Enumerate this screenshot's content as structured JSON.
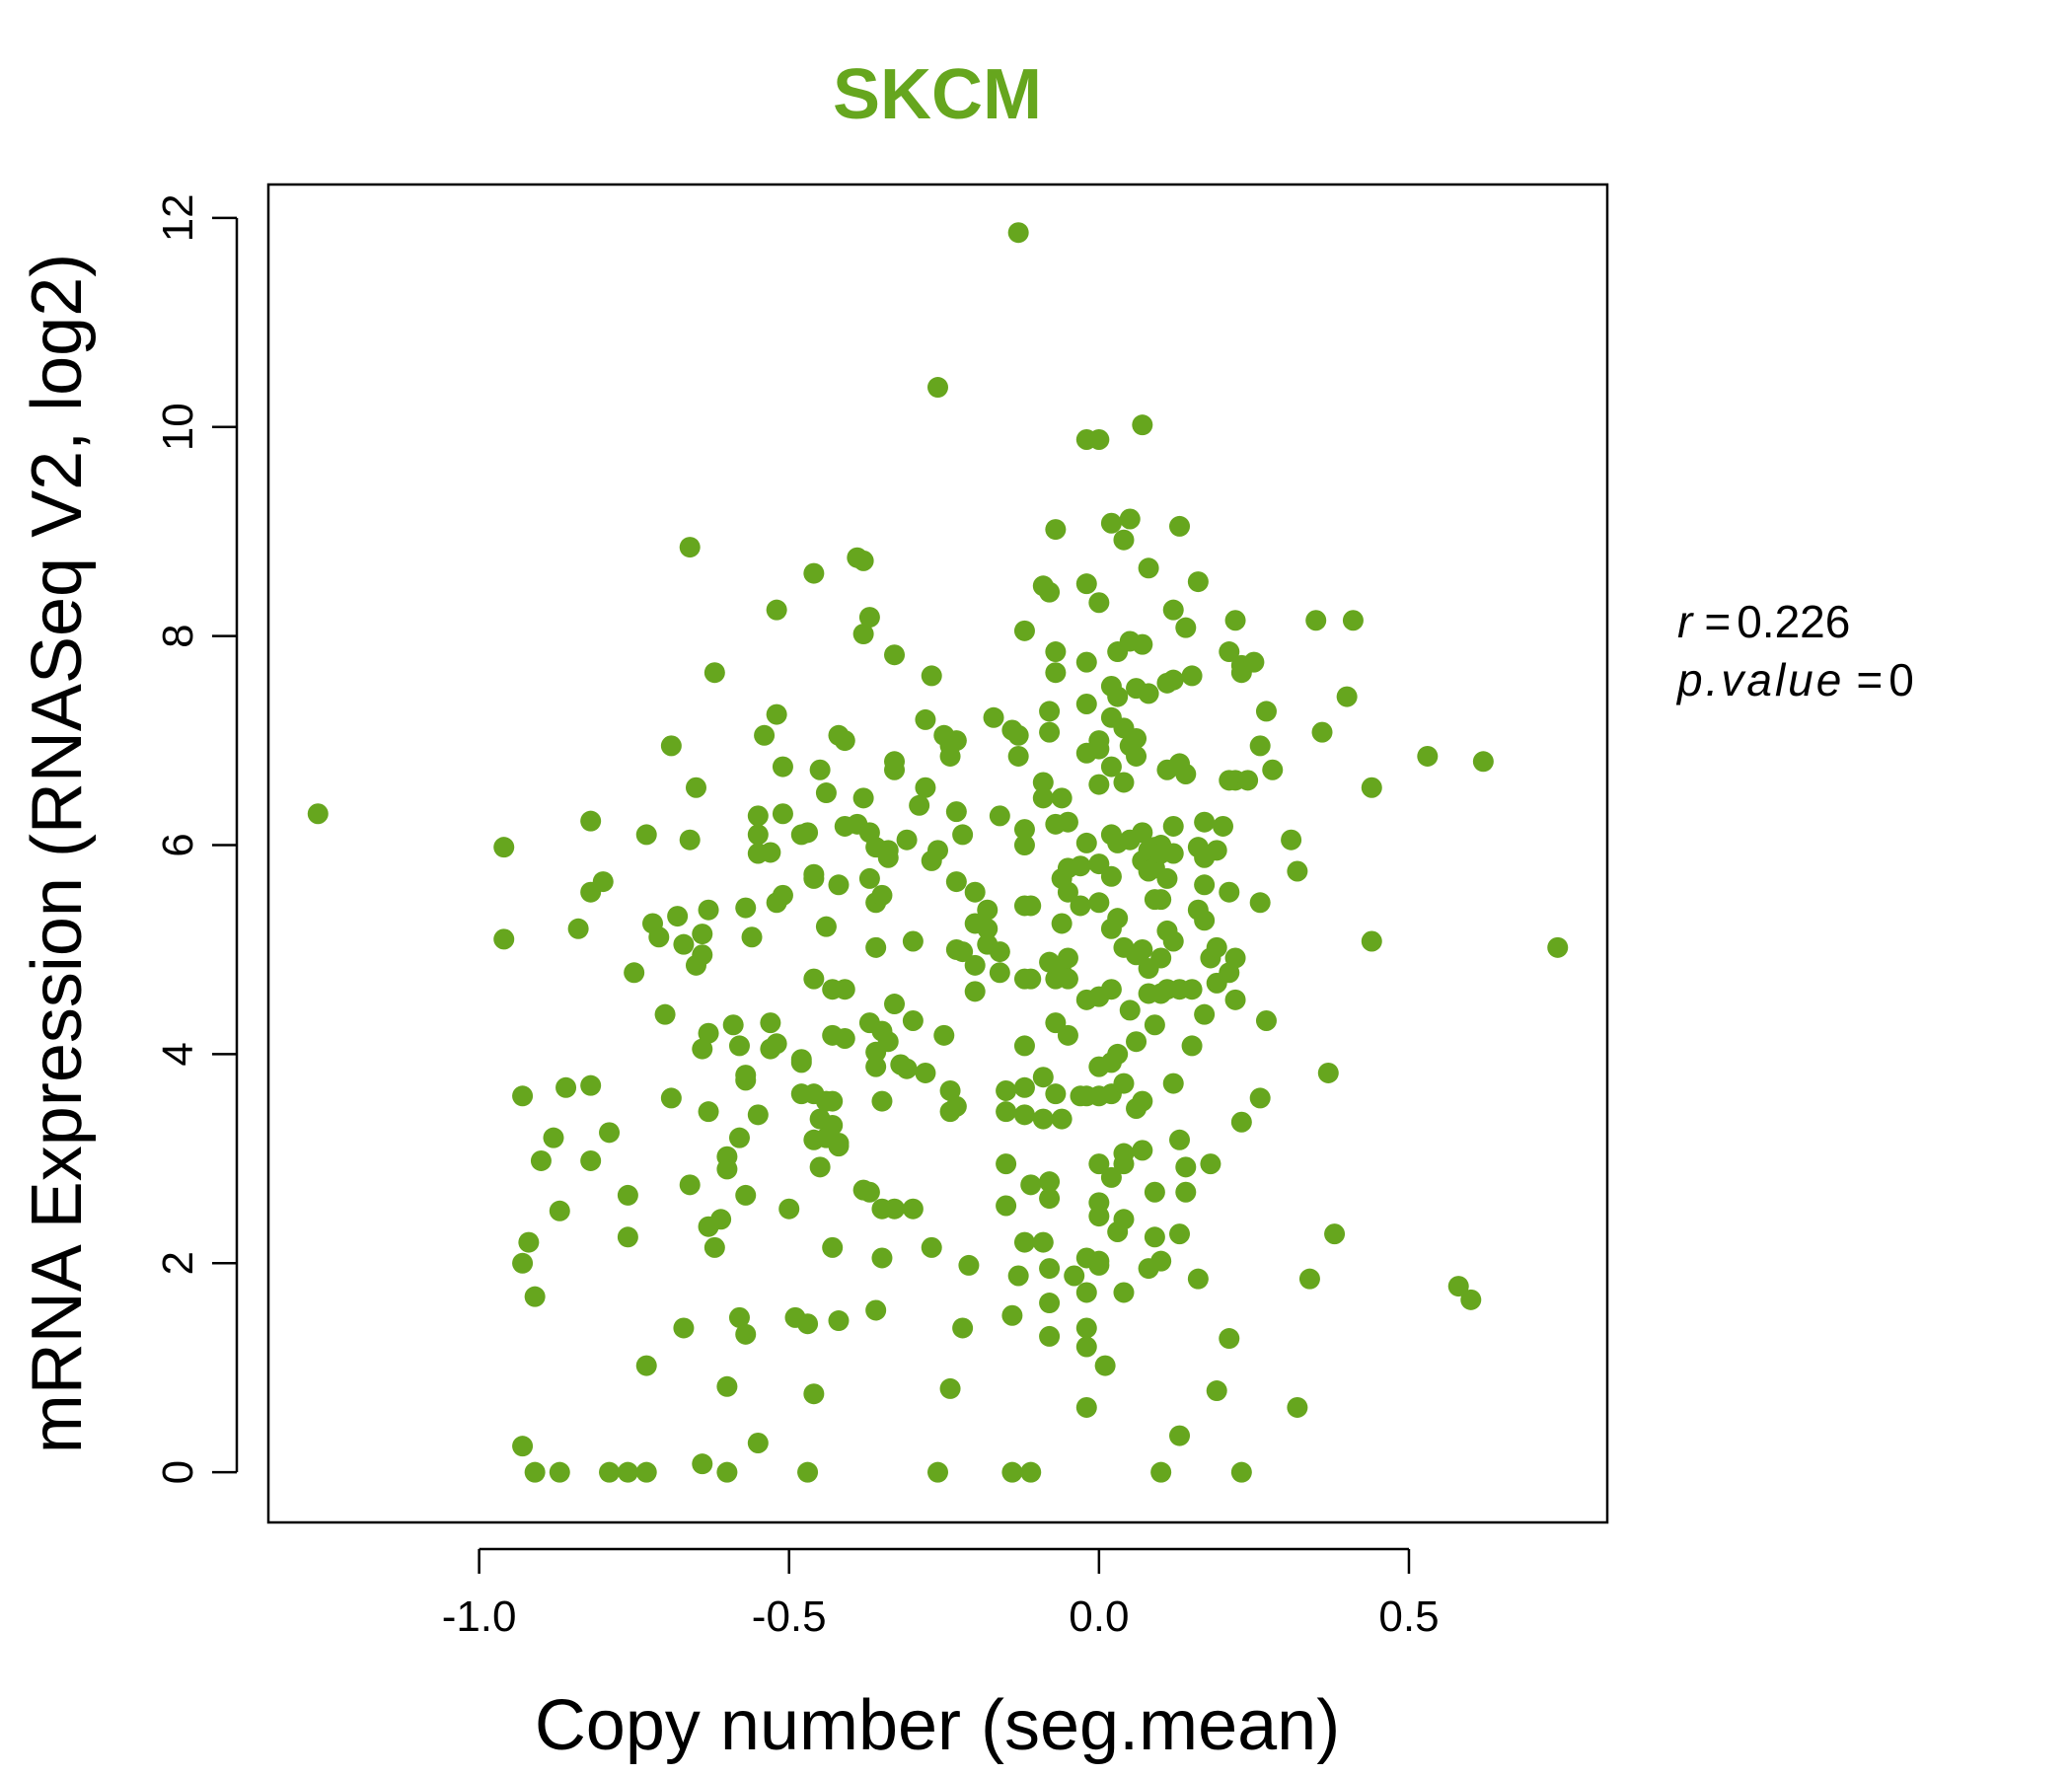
{
  "chart_data": {
    "type": "scatter",
    "title": "SKCM",
    "title_color": "#66a61e",
    "point_color": "#66a61e",
    "xlabel": "Copy number (seg.mean)",
    "ylabel": "mRNA Expression (RNASeq V2, log2)",
    "xlim": [
      -1.34,
      0.82
    ],
    "ylim": [
      -0.48,
      12.32
    ],
    "x_ticks": [
      -1.0,
      -0.5,
      0.0,
      0.5
    ],
    "x_tick_labels": [
      "-1.0",
      "-0.5",
      "0.0",
      "0.5"
    ],
    "y_ticks": [
      0,
      2,
      4,
      6,
      8,
      10,
      12
    ],
    "y_tick_labels": [
      "0",
      "2",
      "4",
      "6",
      "8",
      "10",
      "12"
    ],
    "grid": false,
    "annotations": {
      "r_label": "r",
      "r_value": "0.226",
      "p_label": "p.value",
      "p_value": "0"
    },
    "points": [
      [
        -1.26,
        6.3
      ],
      [
        -0.96,
        5.98
      ],
      [
        -0.96,
        5.1
      ],
      [
        -0.93,
        3.6
      ],
      [
        -0.93,
        2.0
      ],
      [
        -0.92,
        2.2
      ],
      [
        -0.91,
        1.68
      ],
      [
        -0.9,
        2.98
      ],
      [
        -0.93,
        0.25
      ],
      [
        -0.91,
        0.0
      ],
      [
        -0.87,
        0.0
      ],
      [
        -0.88,
        3.2
      ],
      [
        -0.86,
        3.68
      ],
      [
        -0.87,
        2.5
      ],
      [
        -0.84,
        5.2
      ],
      [
        -0.82,
        6.23
      ],
      [
        -0.82,
        5.55
      ],
      [
        -0.8,
        5.65
      ],
      [
        -0.79,
        3.25
      ],
      [
        -0.82,
        3.7
      ],
      [
        -0.82,
        2.98
      ],
      [
        -0.79,
        0.0
      ],
      [
        -0.76,
        0.0
      ],
      [
        -0.73,
        0.0
      ],
      [
        -0.75,
        4.78
      ],
      [
        -0.76,
        2.65
      ],
      [
        -0.76,
        2.25
      ],
      [
        -0.73,
        6.1
      ],
      [
        -0.72,
        5.25
      ],
      [
        -0.71,
        5.12
      ],
      [
        -0.7,
        4.38
      ],
      [
        -0.69,
        3.58
      ],
      [
        -0.69,
        6.95
      ],
      [
        -0.68,
        5.32
      ],
      [
        -0.67,
        5.05
      ],
      [
        -0.66,
        6.05
      ],
      [
        -0.65,
        6.55
      ],
      [
        -0.65,
        4.85
      ],
      [
        -0.64,
        5.15
      ],
      [
        -0.64,
        4.95
      ],
      [
        -0.63,
        5.38
      ],
      [
        -0.63,
        4.2
      ],
      [
        -0.64,
        4.05
      ],
      [
        -0.63,
        3.45
      ],
      [
        -0.66,
        8.85
      ],
      [
        -0.62,
        7.65
      ],
      [
        -0.66,
        2.75
      ],
      [
        -0.63,
        2.35
      ],
      [
        -0.62,
        2.15
      ],
      [
        -0.61,
        2.42
      ],
      [
        -0.6,
        3.02
      ],
      [
        -0.6,
        2.9
      ],
      [
        -0.59,
        4.28
      ],
      [
        -0.58,
        4.08
      ],
      [
        -0.57,
        3.8
      ],
      [
        -0.57,
        3.75
      ],
      [
        -0.58,
        3.2
      ],
      [
        -0.57,
        2.65
      ],
      [
        -0.57,
        5.4
      ],
      [
        -0.67,
        1.38
      ],
      [
        -0.64,
        0.08
      ],
      [
        -0.6,
        0.0
      ],
      [
        -0.58,
        1.48
      ],
      [
        -0.57,
        1.32
      ],
      [
        -0.6,
        0.82
      ],
      [
        -0.55,
        0.28
      ],
      [
        -0.73,
        1.02
      ],
      [
        -0.56,
        5.12
      ],
      [
        -0.55,
        6.28
      ],
      [
        -0.55,
        6.1
      ],
      [
        -0.55,
        5.92
      ],
      [
        -0.53,
        5.93
      ],
      [
        -0.54,
        7.05
      ],
      [
        -0.52,
        8.25
      ],
      [
        -0.52,
        7.25
      ],
      [
        -0.51,
        6.75
      ],
      [
        -0.51,
        6.3
      ],
      [
        -0.52,
        5.45
      ],
      [
        -0.51,
        5.52
      ],
      [
        -0.53,
        4.3
      ],
      [
        -0.52,
        4.1
      ],
      [
        -0.53,
        4.05
      ],
      [
        -0.55,
        3.42
      ],
      [
        -0.5,
        2.52
      ],
      [
        -0.49,
        1.48
      ],
      [
        -0.48,
        6.1
      ],
      [
        -0.47,
        6.12
      ],
      [
        -0.48,
        3.95
      ],
      [
        -0.48,
        3.92
      ],
      [
        -0.48,
        3.62
      ],
      [
        -0.46,
        3.62
      ],
      [
        -0.47,
        1.42
      ],
      [
        -0.47,
        0.0
      ],
      [
        -0.46,
        8.6
      ],
      [
        -0.46,
        5.72
      ],
      [
        -0.46,
        4.72
      ],
      [
        -0.46,
        5.68
      ],
      [
        -0.45,
        3.38
      ],
      [
        -0.46,
        3.18
      ],
      [
        -0.44,
        3.2
      ],
      [
        -0.44,
        3.55
      ],
      [
        -0.45,
        2.92
      ],
      [
        -0.45,
        6.72
      ],
      [
        -0.44,
        6.5
      ],
      [
        -0.44,
        5.22
      ],
      [
        -0.43,
        4.62
      ],
      [
        -0.43,
        4.18
      ],
      [
        -0.43,
        3.55
      ],
      [
        -0.43,
        3.32
      ],
      [
        -0.42,
        3.12
      ],
      [
        -0.42,
        7.05
      ],
      [
        -0.41,
        7.0
      ],
      [
        -0.41,
        6.18
      ],
      [
        -0.42,
        5.62
      ],
      [
        -0.41,
        4.62
      ],
      [
        -0.41,
        4.15
      ],
      [
        -0.42,
        3.15
      ],
      [
        -0.43,
        2.15
      ],
      [
        -0.42,
        1.45
      ],
      [
        -0.46,
        0.75
      ],
      [
        -0.39,
        8.75
      ],
      [
        -0.38,
        8.72
      ],
      [
        -0.38,
        8.02
      ],
      [
        -0.37,
        8.18
      ],
      [
        -0.39,
        6.2
      ],
      [
        -0.38,
        6.45
      ],
      [
        -0.37,
        6.12
      ],
      [
        -0.37,
        5.68
      ],
      [
        -0.36,
        5.98
      ],
      [
        -0.36,
        5.45
      ],
      [
        -0.35,
        5.52
      ],
      [
        -0.36,
        5.02
      ],
      [
        -0.34,
        5.88
      ],
      [
        -0.34,
        5.95
      ],
      [
        -0.33,
        6.8
      ],
      [
        -0.33,
        6.72
      ],
      [
        -0.37,
        4.3
      ],
      [
        -0.36,
        4.02
      ],
      [
        -0.35,
        4.22
      ],
      [
        -0.36,
        3.88
      ],
      [
        -0.35,
        3.55
      ],
      [
        -0.34,
        4.12
      ],
      [
        -0.33,
        4.48
      ],
      [
        -0.32,
        3.9
      ],
      [
        -0.31,
        3.86
      ],
      [
        -0.37,
        2.68
      ],
      [
        -0.38,
        2.7
      ],
      [
        -0.35,
        2.52
      ],
      [
        -0.33,
        2.52
      ],
      [
        -0.35,
        2.05
      ],
      [
        -0.3,
        2.52
      ],
      [
        -0.36,
        1.55
      ],
      [
        -0.33,
        7.82
      ],
      [
        -0.31,
        6.05
      ],
      [
        -0.3,
        5.08
      ],
      [
        -0.3,
        4.32
      ],
      [
        -0.29,
        6.38
      ],
      [
        -0.28,
        7.2
      ],
      [
        -0.28,
        6.55
      ],
      [
        -0.27,
        7.62
      ],
      [
        -0.27,
        5.85
      ],
      [
        -0.26,
        5.95
      ],
      [
        -0.25,
        7.05
      ],
      [
        -0.24,
        6.95
      ],
      [
        -0.23,
        7.0
      ],
      [
        -0.24,
        6.85
      ],
      [
        -0.23,
        6.32
      ],
      [
        -0.22,
        6.1
      ],
      [
        -0.23,
        5.65
      ],
      [
        -0.23,
        5.0
      ],
      [
        -0.22,
        4.98
      ],
      [
        -0.28,
        3.82
      ],
      [
        -0.25,
        4.18
      ],
      [
        -0.24,
        3.65
      ],
      [
        -0.24,
        3.45
      ],
      [
        -0.23,
        3.5
      ],
      [
        -0.27,
        2.15
      ],
      [
        -0.24,
        0.8
      ],
      [
        -0.22,
        1.38
      ],
      [
        -0.26,
        0.0
      ],
      [
        -0.26,
        10.38
      ],
      [
        -0.2,
        5.55
      ],
      [
        -0.2,
        5.25
      ],
      [
        -0.2,
        4.85
      ],
      [
        -0.2,
        4.6
      ],
      [
        -0.21,
        1.98
      ],
      [
        -0.17,
        7.22
      ],
      [
        -0.18,
        5.38
      ],
      [
        -0.18,
        5.2
      ],
      [
        -0.18,
        5.05
      ],
      [
        -0.16,
        6.28
      ],
      [
        -0.16,
        4.98
      ],
      [
        -0.16,
        4.78
      ],
      [
        -0.15,
        3.65
      ],
      [
        -0.15,
        3.45
      ],
      [
        -0.15,
        2.95
      ],
      [
        -0.15,
        2.55
      ],
      [
        -0.14,
        1.5
      ],
      [
        -0.14,
        0.0
      ],
      [
        -0.11,
        0.0
      ],
      [
        -0.13,
        11.86
      ],
      [
        -0.12,
        8.05
      ],
      [
        -0.14,
        7.1
      ],
      [
        -0.13,
        7.05
      ],
      [
        -0.13,
        6.85
      ],
      [
        -0.12,
        6.15
      ],
      [
        -0.12,
        6.0
      ],
      [
        -0.12,
        5.42
      ],
      [
        -0.11,
        5.42
      ],
      [
        -0.12,
        4.72
      ],
      [
        -0.11,
        4.72
      ],
      [
        -0.12,
        4.08
      ],
      [
        -0.12,
        3.68
      ],
      [
        -0.12,
        3.42
      ],
      [
        -0.11,
        2.75
      ],
      [
        -0.12,
        2.2
      ],
      [
        -0.13,
        1.88
      ],
      [
        -0.09,
        8.48
      ],
      [
        -0.08,
        8.42
      ],
      [
        -0.07,
        9.02
      ],
      [
        -0.07,
        7.85
      ],
      [
        -0.08,
        7.28
      ],
      [
        -0.08,
        7.08
      ],
      [
        -0.07,
        7.65
      ],
      [
        -0.09,
        6.6
      ],
      [
        -0.09,
        6.45
      ],
      [
        -0.06,
        6.45
      ],
      [
        -0.07,
        6.2
      ],
      [
        -0.05,
        6.22
      ],
      [
        -0.06,
        5.68
      ],
      [
        -0.05,
        5.78
      ],
      [
        -0.06,
        5.25
      ],
      [
        -0.05,
        5.55
      ],
      [
        -0.07,
        4.72
      ],
      [
        -0.07,
        4.3
      ],
      [
        -0.05,
        4.18
      ],
      [
        -0.08,
        4.88
      ],
      [
        -0.06,
        4.78
      ],
      [
        -0.05,
        4.92
      ],
      [
        -0.05,
        4.72
      ],
      [
        -0.09,
        3.78
      ],
      [
        -0.09,
        3.38
      ],
      [
        -0.07,
        3.62
      ],
      [
        -0.06,
        3.38
      ],
      [
        -0.08,
        2.78
      ],
      [
        -0.08,
        2.62
      ],
      [
        -0.09,
        2.2
      ],
      [
        -0.08,
        1.95
      ],
      [
        -0.08,
        1.62
      ],
      [
        -0.08,
        1.3
      ],
      [
        -0.04,
        1.88
      ],
      [
        -0.03,
        3.6
      ],
      [
        -0.02,
        3.6
      ],
      [
        -0.02,
        4.52
      ],
      [
        -0.03,
        5.42
      ],
      [
        -0.03,
        5.8
      ],
      [
        -0.02,
        6.02
      ],
      [
        -0.02,
        6.88
      ],
      [
        -0.02,
        7.35
      ],
      [
        -0.02,
        7.75
      ],
      [
        -0.02,
        8.5
      ],
      [
        -0.02,
        9.88
      ],
      [
        -0.02,
        2.05
      ],
      [
        -0.02,
        1.72
      ],
      [
        -0.02,
        1.38
      ],
      [
        -0.02,
        1.2
      ],
      [
        -0.02,
        0.62
      ],
      [
        0.0,
        9.88
      ],
      [
        0.0,
        8.32
      ],
      [
        0.0,
        7.0
      ],
      [
        0.0,
        6.92
      ],
      [
        0.0,
        6.58
      ],
      [
        0.0,
        5.82
      ],
      [
        0.0,
        5.45
      ],
      [
        0.0,
        4.55
      ],
      [
        0.0,
        3.88
      ],
      [
        0.0,
        3.6
      ],
      [
        0.0,
        2.95
      ],
      [
        0.0,
        2.58
      ],
      [
        0.0,
        2.45
      ],
      [
        0.0,
        2.02
      ],
      [
        0.0,
        1.98
      ],
      [
        0.01,
        1.02
      ],
      [
        0.02,
        9.08
      ],
      [
        0.02,
        7.52
      ],
      [
        0.02,
        7.22
      ],
      [
        0.02,
        6.75
      ],
      [
        0.02,
        6.1
      ],
      [
        0.02,
        5.7
      ],
      [
        0.02,
        5.2
      ],
      [
        0.02,
        4.62
      ],
      [
        0.02,
        3.92
      ],
      [
        0.02,
        3.62
      ],
      [
        0.02,
        2.82
      ],
      [
        0.03,
        2.3
      ],
      [
        0.03,
        7.85
      ],
      [
        0.03,
        7.42
      ],
      [
        0.03,
        6.02
      ],
      [
        0.03,
        5.3
      ],
      [
        0.03,
        4.0
      ],
      [
        0.04,
        3.05
      ],
      [
        0.04,
        2.42
      ],
      [
        0.04,
        8.92
      ],
      [
        0.04,
        7.12
      ],
      [
        0.04,
        6.6
      ],
      [
        0.04,
        5.02
      ],
      [
        0.04,
        3.72
      ],
      [
        0.04,
        2.95
      ],
      [
        0.04,
        1.72
      ],
      [
        0.05,
        9.12
      ],
      [
        0.05,
        7.95
      ],
      [
        0.05,
        6.95
      ],
      [
        0.05,
        6.05
      ],
      [
        0.05,
        4.42
      ],
      [
        0.06,
        7.5
      ],
      [
        0.06,
        7.02
      ],
      [
        0.06,
        6.85
      ],
      [
        0.06,
        4.95
      ],
      [
        0.06,
        4.12
      ],
      [
        0.06,
        3.48
      ],
      [
        0.07,
        10.02
      ],
      [
        0.07,
        7.92
      ],
      [
        0.07,
        6.12
      ],
      [
        0.07,
        5.85
      ],
      [
        0.07,
        5.0
      ],
      [
        0.07,
        3.55
      ],
      [
        0.07,
        3.08
      ],
      [
        0.08,
        8.65
      ],
      [
        0.08,
        7.45
      ],
      [
        0.08,
        5.95
      ],
      [
        0.08,
        5.75
      ],
      [
        0.08,
        4.82
      ],
      [
        0.08,
        4.58
      ],
      [
        0.08,
        1.95
      ],
      [
        0.09,
        5.98
      ],
      [
        0.09,
        5.78
      ],
      [
        0.09,
        5.48
      ],
      [
        0.09,
        4.28
      ],
      [
        0.09,
        2.68
      ],
      [
        0.09,
        2.25
      ],
      [
        0.1,
        6.0
      ],
      [
        0.1,
        5.92
      ],
      [
        0.1,
        5.48
      ],
      [
        0.1,
        4.92
      ],
      [
        0.1,
        4.58
      ],
      [
        0.1,
        2.02
      ],
      [
        0.1,
        0.0
      ],
      [
        0.11,
        7.55
      ],
      [
        0.11,
        6.72
      ],
      [
        0.11,
        5.68
      ],
      [
        0.11,
        5.18
      ],
      [
        0.11,
        4.62
      ],
      [
        0.12,
        8.25
      ],
      [
        0.12,
        7.58
      ],
      [
        0.12,
        6.18
      ],
      [
        0.12,
        5.92
      ],
      [
        0.12,
        5.08
      ],
      [
        0.12,
        3.72
      ],
      [
        0.13,
        9.05
      ],
      [
        0.13,
        6.78
      ],
      [
        0.13,
        4.62
      ],
      [
        0.13,
        3.18
      ],
      [
        0.13,
        2.28
      ],
      [
        0.13,
        0.35
      ],
      [
        0.14,
        8.08
      ],
      [
        0.14,
        6.68
      ],
      [
        0.14,
        2.68
      ],
      [
        0.14,
        2.92
      ],
      [
        0.15,
        7.62
      ],
      [
        0.15,
        4.62
      ],
      [
        0.15,
        4.08
      ],
      [
        0.16,
        8.52
      ],
      [
        0.16,
        5.98
      ],
      [
        0.16,
        5.38
      ],
      [
        0.16,
        1.85
      ],
      [
        0.17,
        6.22
      ],
      [
        0.17,
        5.88
      ],
      [
        0.17,
        5.62
      ],
      [
        0.17,
        5.28
      ],
      [
        0.17,
        4.38
      ],
      [
        0.18,
        4.92
      ],
      [
        0.18,
        2.95
      ],
      [
        0.19,
        5.95
      ],
      [
        0.19,
        5.02
      ],
      [
        0.19,
        4.68
      ],
      [
        0.19,
        0.78
      ],
      [
        0.2,
        6.18
      ],
      [
        0.21,
        7.85
      ],
      [
        0.21,
        6.62
      ],
      [
        0.21,
        5.55
      ],
      [
        0.21,
        4.78
      ],
      [
        0.21,
        1.28
      ],
      [
        0.22,
        8.15
      ],
      [
        0.22,
        6.62
      ],
      [
        0.22,
        4.92
      ],
      [
        0.22,
        4.52
      ],
      [
        0.23,
        7.72
      ],
      [
        0.23,
        7.65
      ],
      [
        0.23,
        3.35
      ],
      [
        0.23,
        0.0
      ],
      [
        0.24,
        6.62
      ],
      [
        0.25,
        7.75
      ],
      [
        0.26,
        6.95
      ],
      [
        0.26,
        5.45
      ],
      [
        0.26,
        3.58
      ],
      [
        0.27,
        7.28
      ],
      [
        0.27,
        4.32
      ],
      [
        0.28,
        6.72
      ],
      [
        0.31,
        6.05
      ],
      [
        0.32,
        5.75
      ],
      [
        0.32,
        0.62
      ],
      [
        0.34,
        1.85
      ],
      [
        0.35,
        8.15
      ],
      [
        0.36,
        7.08
      ],
      [
        0.37,
        3.82
      ],
      [
        0.38,
        2.28
      ],
      [
        0.4,
        7.42
      ],
      [
        0.41,
        8.15
      ],
      [
        0.44,
        6.55
      ],
      [
        0.44,
        5.08
      ],
      [
        0.53,
        6.85
      ],
      [
        0.58,
        1.78
      ],
      [
        0.6,
        1.65
      ],
      [
        0.62,
        6.8
      ],
      [
        0.74,
        5.02
      ]
    ]
  }
}
